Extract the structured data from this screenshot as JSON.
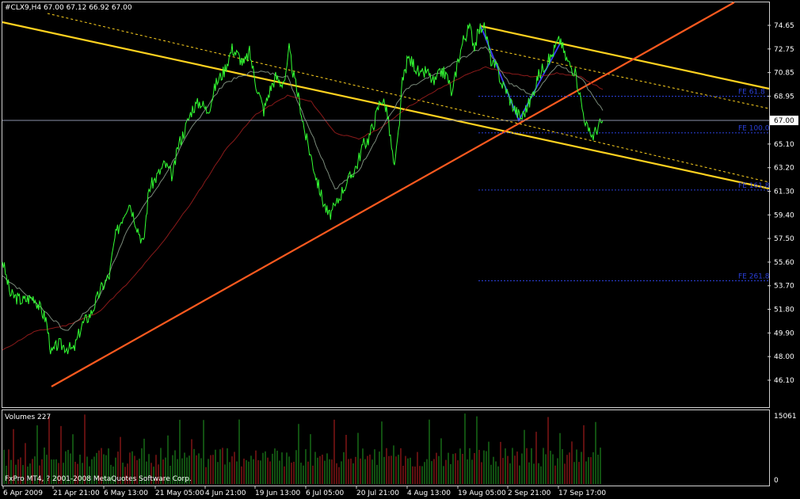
{
  "header": {
    "symbol_info": "#CLX9,H4  67.00 67.12 66.92 67.00"
  },
  "volume_panel": {
    "label": "Volumes 227",
    "max_label": "15061",
    "zero_label": "0"
  },
  "copyright": "FxPro MT4, ? 2001-2008 MetaQuotes Software Corp.",
  "colors": {
    "background": "#000000",
    "price": "#33ff33",
    "ma_fast": "#7a8a7a",
    "ma_slow": "#8b1a1a",
    "channel_main": "#ffd21f",
    "trend_line": "#ff5a1f",
    "fe_lines": "#2a3fd8",
    "current_price_line": "#8a8fa8",
    "volume_up": "#22a022",
    "volume_down": "#c02020",
    "frame": "#cfcfcf"
  },
  "chart_data": {
    "type": "line",
    "title": "#CLX9,H4",
    "ohlc_last": {
      "open": 67.0,
      "high": 67.12,
      "low": 66.92,
      "close": 67.0
    },
    "y_ticks": [
      "74.65",
      "72.75",
      "70.85",
      "68.95",
      "67.00",
      "65.10",
      "63.20",
      "61.30",
      "59.40",
      "57.50",
      "55.60",
      "53.70",
      "51.80",
      "49.90",
      "48.00",
      "46.10"
    ],
    "ylim": [
      46.1,
      76.0
    ],
    "current_price": "67.00",
    "x_ticks": [
      "6 Apr 2009",
      "21 Apr 21:00",
      "6 May 13:00",
      "21 May 05:00",
      "4 Jun 21:00",
      "19 Jun 13:00",
      "6 Jul 05:00",
      "20 Jul 21:00",
      "4 Aug 13:00",
      "19 Aug 05:00",
      "2 Sep 21:00",
      "17 Sep 17:00"
    ],
    "price_path": [
      [
        0,
        55.8
      ],
      [
        10,
        53.0
      ],
      [
        25,
        52.5
      ],
      [
        40,
        52.8
      ],
      [
        55,
        51.0
      ],
      [
        62,
        48.2
      ],
      [
        70,
        49.0
      ],
      [
        80,
        48.8
      ],
      [
        90,
        48.5
      ],
      [
        100,
        50.5
      ],
      [
        112,
        51.5
      ],
      [
        125,
        53.5
      ],
      [
        135,
        54.5
      ],
      [
        142,
        57.5
      ],
      [
        150,
        59.0
      ],
      [
        160,
        60.5
      ],
      [
        170,
        58.5
      ],
      [
        178,
        57.0
      ],
      [
        185,
        61.5
      ],
      [
        195,
        62.5
      ],
      [
        205,
        63.5
      ],
      [
        215,
        62.5
      ],
      [
        222,
        65.0
      ],
      [
        230,
        66.2
      ],
      [
        240,
        68.0
      ],
      [
        250,
        68.5
      ],
      [
        258,
        67.8
      ],
      [
        262,
        68.2
      ],
      [
        270,
        70.0
      ],
      [
        280,
        71.0
      ],
      [
        290,
        72.8
      ],
      [
        298,
        72.2
      ],
      [
        305,
        71.5
      ],
      [
        312,
        72.5
      ],
      [
        320,
        70.0
      ],
      [
        330,
        67.8
      ],
      [
        338,
        69.5
      ],
      [
        345,
        70.5
      ],
      [
        352,
        70.0
      ],
      [
        358,
        70.5
      ],
      [
        362,
        72.7
      ],
      [
        368,
        70.5
      ],
      [
        375,
        68.5
      ],
      [
        382,
        66.0
      ],
      [
        390,
        64.0
      ],
      [
        398,
        62.0
      ],
      [
        405,
        60.5
      ],
      [
        412,
        59.3
      ],
      [
        420,
        60.0
      ],
      [
        430,
        61.5
      ],
      [
        440,
        62.5
      ],
      [
        448,
        63.5
      ],
      [
        455,
        65.0
      ],
      [
        462,
        65.5
      ],
      [
        470,
        67.0
      ],
      [
        478,
        68.8
      ],
      [
        485,
        68.0
      ],
      [
        490,
        65.5
      ],
      [
        495,
        63.0
      ],
      [
        500,
        66.0
      ],
      [
        505,
        70.0
      ],
      [
        512,
        72.0
      ],
      [
        520,
        71.5
      ],
      [
        528,
        70.5
      ],
      [
        535,
        71.0
      ],
      [
        545,
        70.0
      ],
      [
        555,
        71.0
      ],
      [
        562,
        70.5
      ],
      [
        568,
        69.0
      ],
      [
        574,
        71.5
      ],
      [
        582,
        73.5
      ],
      [
        590,
        74.5
      ],
      [
        596,
        73.0
      ],
      [
        602,
        74.3
      ],
      [
        607,
        74.7
      ],
      [
        612,
        73.5
      ],
      [
        618,
        71.5
      ],
      [
        625,
        71.2
      ],
      [
        630,
        70.0
      ],
      [
        636,
        69.5
      ],
      [
        642,
        68.5
      ],
      [
        648,
        67.8
      ],
      [
        655,
        67.2
      ],
      [
        662,
        68.0
      ],
      [
        668,
        68.8
      ],
      [
        676,
        70.5
      ],
      [
        685,
        71.5
      ],
      [
        692,
        72.0
      ],
      [
        700,
        73.2
      ],
      [
        705,
        73.5
      ],
      [
        710,
        72.2
      ],
      [
        716,
        71.5
      ],
      [
        722,
        71.0
      ],
      [
        728,
        69.5
      ],
      [
        732,
        68.0
      ],
      [
        736,
        67.0
      ],
      [
        740,
        66.0
      ],
      [
        746,
        65.8
      ],
      [
        752,
        66.5
      ],
      [
        758,
        67.0
      ]
    ],
    "ma_fast_path": [
      [
        0,
        54.5
      ],
      [
        40,
        52.5
      ],
      [
        80,
        50.0
      ],
      [
        120,
        52.5
      ],
      [
        160,
        58.5
      ],
      [
        200,
        62.0
      ],
      [
        240,
        66.5
      ],
      [
        280,
        70.0
      ],
      [
        320,
        71.0
      ],
      [
        360,
        70.5
      ],
      [
        390,
        66.0
      ],
      [
        420,
        61.5
      ],
      [
        450,
        63.0
      ],
      [
        480,
        66.5
      ],
      [
        510,
        69.5
      ],
      [
        550,
        70.8
      ],
      [
        580,
        72.0
      ],
      [
        610,
        73.0
      ],
      [
        640,
        70.0
      ],
      [
        670,
        69.0
      ],
      [
        700,
        71.5
      ],
      [
        730,
        70.5
      ],
      [
        758,
        67.8
      ]
    ],
    "ma_slow_path": [
      [
        0,
        48.5
      ],
      [
        40,
        50.0
      ],
      [
        80,
        50.5
      ],
      [
        120,
        51.5
      ],
      [
        160,
        54.0
      ],
      [
        200,
        57.0
      ],
      [
        240,
        60.5
      ],
      [
        280,
        64.5
      ],
      [
        320,
        67.5
      ],
      [
        360,
        69.0
      ],
      [
        390,
        68.5
      ],
      [
        420,
        66.0
      ],
      [
        450,
        65.5
      ],
      [
        480,
        66.5
      ],
      [
        510,
        68.0
      ],
      [
        550,
        69.5
      ],
      [
        580,
        70.5
      ],
      [
        610,
        71.3
      ],
      [
        640,
        70.8
      ],
      [
        670,
        70.5
      ],
      [
        700,
        70.8
      ],
      [
        730,
        70.5
      ],
      [
        758,
        69.5
      ]
    ],
    "fe_levels": [
      {
        "label": "FE 61.8",
        "value": 68.95
      },
      {
        "label": "FE 100.0",
        "value": 66.0
      },
      {
        "label": "FE 161.8",
        "value": 61.4
      },
      {
        "label": "FE 261.8",
        "value": 54.1
      }
    ]
  }
}
